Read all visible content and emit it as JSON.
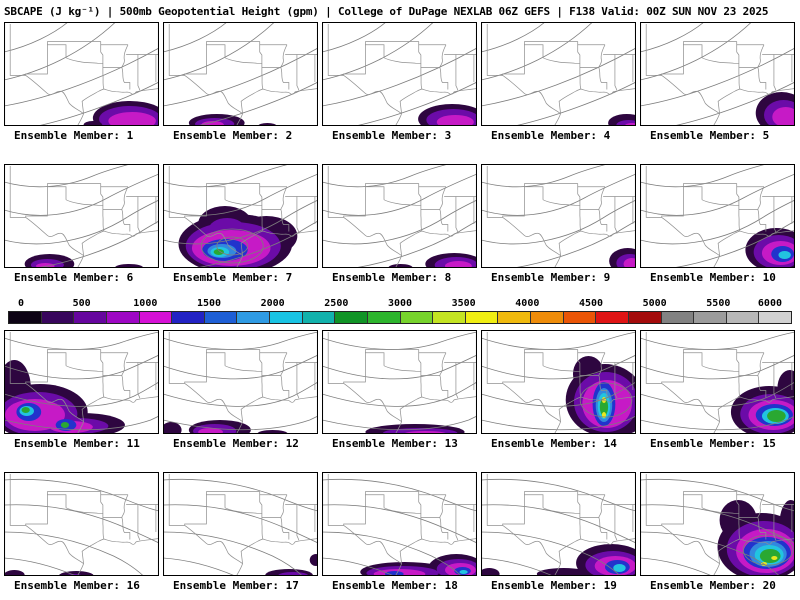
{
  "title": "SBCAPE (J kg⁻¹) | 500mb Geopotential Height (gpm) | College of DuPage NEXLAB 06Z GEFS | F138 Valid: 00Z SUN NOV 23 2025",
  "product": {
    "parameter": "SBCAPE (J kg⁻¹)",
    "overlay": "500mb Geopotential Height (gpm)",
    "source": "College of DuPage NEXLAB 06Z GEFS",
    "forecast_hour": "F138",
    "valid_time": "00Z SUN NOV 23 2025"
  },
  "colorbar": {
    "units": "J kg⁻¹",
    "ticks": [
      "0",
      "500",
      "1000",
      "1500",
      "2000",
      "2500",
      "3000",
      "3500",
      "4000",
      "4500",
      "5000",
      "5500",
      "6000"
    ],
    "segments": [
      "#0d0314",
      "#38065c",
      "#66069e",
      "#9e07c4",
      "#d611d6",
      "#2222c4",
      "#1e5fd6",
      "#2f9be4",
      "#19c4e4",
      "#12b2ac",
      "#119426",
      "#2db52d",
      "#77d32c",
      "#c4e422",
      "#f0ee12",
      "#f0ba0e",
      "#ee8c0a",
      "#ea5506",
      "#df1414",
      "#a40b0b",
      "#828282",
      "#9c9c9c",
      "#b8b8b8",
      "#d2d2d2"
    ],
    "arrow_left_color": "#0d0314",
    "arrow_right_color": "#e2e2e2"
  },
  "map": {
    "colors": {
      "contour": "#7d7d7d",
      "border_gray": "#909090",
      "frame": "#000000"
    },
    "geo_paths": [
      "M6,2 L6,53.4 L21,53.4",
      "M42,19.5 L42,52 L21,52 L21,53.4",
      "M42,19.5 L93.6,19.5",
      "M42,22.75 L60,22.75 L60,35.75",
      "M60,35.75 C65,38.5 70,39 75,40 C80,41 86,40.5 91,41.3 L95.7,41.3 L95.7,52 C96.3,57 95.2,62 96.6,67",
      "M93.6,19.5 L93.6,30 L95.7,33 L95.7,41.3",
      "M21,53.4 C27,57.5 35,65 42,71.5 C46.5,75.5 51,67.5 56,69.5 C59,71 60.5,76 63,81 C66,85.5 72,87.5 77,91.6 C75.5,96.5 72.5,101 70.5,105",
      "M77,91.6 C76.5,87 76,83 75.6,79.3 C80,75.5 86,72.5 91.2,69.5 C93,68.4 95,67.6 96.6,67 C100.5,68.2 104,69.6 108,69.7 C110,69.7 112.5,70 114,70.2 C116.5,70.4 119,69.8 121,70.3 C123.5,70.9 123,72.5 125.5,72.3 C127.5,72.1 126.5,70 128.5,69.6 C131.5,69 134,68.6 137,68.2 C141,67.7 146,67 150,66.5",
      "M95.7,45.5 L114,45.5 C116,50.5 113.8,56 116.5,60.5 L121.8,60.5 L121.8,67.5",
      "M120,22.75 C117.5,28 115.5,33 116.5,38 C117,41.5 114.5,43 114,45.5",
      "M93.6,22.75 L120,22.75",
      "M118.2,32.5 L150,32.5",
      "M129.6,32.5 L129.6,63.7 C130.5,65.5 131,66.8 131.5,68.2",
      "M147,32.5 L147,60"
    ],
    "contour_variants": [
      [
        "M0,30 C25,24 48,12 62,0",
        "M0,58 C35,50 75,32 108,0",
        "M0,84 C45,76 100,55 150,26",
        "M28,105 C70,96 120,76 150,60"
      ],
      [
        "M0,18 C28,26 58,24 86,12 C100,6 112,3 122,0",
        "M0,46 C32,56 68,52 100,34 C116,25 134,17 150,10",
        "M0,76 C38,86 84,76 118,54 C130,46 142,40 150,36",
        "M26,105 C58,100 98,88 132,68 C138,64 145,60 150,57"
      ],
      [
        "M0,8 C35,20 78,24 112,13 C126,8 140,4 150,2",
        "M0,36 C40,50 82,54 116,41 C130,35 142,29 150,25",
        "M0,64 C45,78 92,82 126,66 C136,61 145,55 150,52",
        "M0,90 C50,102 102,104 142,90 L150,86"
      ],
      [
        "M0,8 C40,5 80,12 114,26 C128,32 142,37 150,39",
        "M0,33 C45,31 85,41 118,56 C132,62 144,68 150,71",
        "M0,60 C40,60 76,70 106,84 C118,90 128,97 136,105",
        "M0,86 C28,88 52,96 72,105"
      ]
    ]
  },
  "panels": [
    {
      "member": 1,
      "label": "Ensemble Member: 1",
      "contour": 0,
      "blobs": [
        [
          122,
          96,
          36,
          17,
          "#2e0640"
        ],
        [
          122,
          97,
          30,
          13,
          "#6b0ba8"
        ],
        [
          124,
          99,
          23,
          9,
          "#c61ac6"
        ],
        [
          86,
          103,
          9,
          4,
          "#2e0640"
        ]
      ]
    },
    {
      "member": 2,
      "label": "Ensemble Member: 2",
      "contour": 0,
      "blobs": [
        [
          52,
          101,
          27,
          9,
          "#2e0640"
        ],
        [
          50,
          102,
          19,
          6,
          "#6b0ba8"
        ],
        [
          48,
          103,
          11,
          4,
          "#c61ac6"
        ],
        [
          101,
          104,
          9,
          3,
          "#2e0640"
        ]
      ]
    },
    {
      "member": 3,
      "label": "Ensemble Member: 3",
      "contour": 0,
      "blobs": [
        [
          126,
          97,
          33,
          15,
          "#2e0640"
        ],
        [
          127,
          98,
          26,
          11,
          "#6b0ba8"
        ],
        [
          129,
          100,
          18,
          7,
          "#c61ac6"
        ]
      ]
    },
    {
      "member": 4,
      "label": "Ensemble Member: 4",
      "contour": 0,
      "blobs": [
        [
          141,
          101,
          18,
          9,
          "#2e0640"
        ],
        [
          143,
          103,
          12,
          5,
          "#6b0ba8"
        ],
        [
          146,
          104,
          7,
          3,
          "#c61ac6"
        ]
      ]
    },
    {
      "member": 5,
      "label": "Ensemble Member: 5",
      "contour": 0,
      "blobs": [
        [
          137,
          91,
          25,
          21,
          "#2e0640"
        ],
        [
          139,
          93,
          19,
          15,
          "#6b0ba8"
        ],
        [
          141,
          95,
          13,
          10,
          "#c61ac6"
        ]
      ]
    },
    {
      "member": 6,
      "label": "Ensemble Member: 6",
      "contour": 1,
      "blobs": [
        [
          44,
          100,
          24,
          10,
          "#2e0640"
        ],
        [
          42,
          101,
          16,
          6,
          "#6b0ba8"
        ],
        [
          40,
          102,
          9,
          3,
          "#c61ac6"
        ],
        [
          121,
          104,
          14,
          4,
          "#2e0640"
        ]
      ]
    },
    {
      "member": 7,
      "label": "Ensemble Member: 7",
      "contour": 1,
      "blobs": [
        [
          70,
          80,
          55,
          30,
          "#2e0640"
        ],
        [
          60,
          60,
          26,
          18,
          "#2e0640"
        ],
        [
          100,
          72,
          30,
          20,
          "#2e0640"
        ],
        [
          68,
          82,
          46,
          24,
          "#6b0ba8"
        ],
        [
          62,
          66,
          18,
          12,
          "#6b0ba8"
        ],
        [
          66,
          84,
          38,
          18,
          "#c61ac6"
        ],
        [
          60,
          86,
          22,
          11,
          "#2233cc"
        ],
        [
          57,
          87,
          14,
          7,
          "#3388dd"
        ],
        [
          55,
          88,
          9,
          5,
          "#22c4e0"
        ],
        [
          54,
          88,
          5,
          3,
          "#2aa832"
        ]
      ],
      "extra_contours": [
        "M37,82 a30,17 0 1,0 60,0 a30,17 0 1,0 -60,0",
        "M52,82 a15,9 0 1,0 30,0 a15,9 0 1,0 -30,0"
      ]
    },
    {
      "member": 8,
      "label": "Ensemble Member: 8",
      "contour": 1,
      "blobs": [
        [
          128,
          100,
          28,
          11,
          "#2e0640"
        ],
        [
          130,
          101,
          21,
          8,
          "#6b0ba8"
        ],
        [
          132,
          102,
          13,
          5,
          "#c61ac6"
        ],
        [
          76,
          104,
          12,
          4,
          "#2e0640"
        ]
      ]
    },
    {
      "member": 9,
      "label": "Ensemble Member: 9",
      "contour": 1,
      "blobs": [
        [
          142,
          97,
          18,
          13,
          "#2e0640"
        ],
        [
          144,
          99,
          13,
          9,
          "#6b0ba8"
        ],
        [
          146,
          100,
          8,
          6,
          "#c61ac6"
        ]
      ]
    },
    {
      "member": 10,
      "label": "Ensemble Member: 10",
      "contour": 1,
      "blobs": [
        [
          132,
          86,
          30,
          22,
          "#2e0640"
        ],
        [
          134,
          88,
          24,
          17,
          "#6b0ba8"
        ],
        [
          136,
          89,
          18,
          12,
          "#c61ac6"
        ],
        [
          138,
          90,
          11,
          8,
          "#2233cc"
        ],
        [
          140,
          91,
          6,
          4,
          "#22c4e0"
        ]
      ]
    },
    {
      "member": 11,
      "label": "Ensemble Member: 11",
      "contour": 2,
      "blobs": [
        [
          35,
          82,
          46,
          28,
          "#2e0640"
        ],
        [
          10,
          58,
          16,
          28,
          "#2e0640"
        ],
        [
          75,
          95,
          42,
          12,
          "#2e0640"
        ],
        [
          33,
          84,
          38,
          22,
          "#6b0ba8"
        ],
        [
          70,
          96,
          31,
          8,
          "#6b0ba8"
        ],
        [
          30,
          85,
          29,
          16,
          "#c61ac6"
        ],
        [
          65,
          97,
          21,
          6,
          "#c61ac6"
        ],
        [
          24,
          82,
          12,
          9,
          "#2233cc"
        ],
        [
          60,
          95,
          10,
          6,
          "#2233cc"
        ],
        [
          22,
          81,
          7,
          5,
          "#22c4e0"
        ],
        [
          21,
          80,
          4,
          3,
          "#2aa832"
        ],
        [
          59,
          95,
          4,
          3,
          "#2aa832"
        ]
      ]
    },
    {
      "member": 12,
      "label": "Ensemble Member: 12",
      "contour": 2,
      "blobs": [
        [
          55,
          100,
          30,
          10,
          "#2e0640"
        ],
        [
          50,
          101,
          21,
          7,
          "#6b0ba8"
        ],
        [
          46,
          102,
          12,
          4,
          "#c61ac6"
        ],
        [
          8,
          100,
          10,
          8,
          "#2e0640"
        ],
        [
          106,
          104,
          15,
          4,
          "#2e0640"
        ]
      ]
    },
    {
      "member": 13,
      "label": "Ensemble Member: 13",
      "contour": 2,
      "blobs": [
        [
          90,
          102,
          48,
          8,
          "#2e0640"
        ],
        [
          95,
          103,
          36,
          5,
          "#6b0ba8"
        ],
        [
          100,
          104,
          21,
          3,
          "#c61ac6"
        ]
      ]
    },
    {
      "member": 14,
      "label": "Ensemble Member: 14",
      "contour": 2,
      "blobs": [
        [
          120,
          70,
          38,
          36,
          "#2e0640"
        ],
        [
          104,
          44,
          15,
          18,
          "#2e0640"
        ],
        [
          140,
          90,
          16,
          14,
          "#2e0640"
        ],
        [
          121,
          72,
          31,
          30,
          "#6b0ba8"
        ],
        [
          122,
          74,
          24,
          24,
          "#c61ac6"
        ],
        [
          119,
          74,
          11,
          22,
          "#2233cc"
        ],
        [
          119,
          75,
          8,
          17,
          "#3388dd"
        ],
        [
          119,
          76,
          6,
          13,
          "#22c4e0"
        ],
        [
          119,
          77,
          4,
          9,
          "#2aa832"
        ],
        [
          119,
          70,
          2,
          3,
          "#e8e820"
        ],
        [
          119,
          85,
          2,
          3,
          "#e8e820"
        ]
      ],
      "extra_contours": [
        "M96,70 a25,17 0 1,0 50,0 a25,17 0 1,0 -50,0"
      ]
    },
    {
      "member": 15,
      "label": "Ensemble Member: 15",
      "contour": 2,
      "blobs": [
        [
          125,
          82,
          37,
          26,
          "#2e0640"
        ],
        [
          145,
          58,
          12,
          18,
          "#2e0640"
        ],
        [
          127,
          84,
          30,
          20,
          "#6b0ba8"
        ],
        [
          129,
          85,
          24,
          15,
          "#c61ac6"
        ],
        [
          130,
          85,
          18,
          11,
          "#2233cc"
        ],
        [
          131,
          86,
          13,
          8,
          "#22c4e0"
        ],
        [
          132,
          86,
          9,
          6,
          "#2aa832"
        ]
      ]
    },
    {
      "member": 16,
      "label": "Ensemble Member: 16",
      "contour": 3,
      "blobs": [
        [
          70,
          104,
          17,
          5,
          "#2e0640"
        ],
        [
          10,
          103,
          10,
          5,
          "#2e0640"
        ],
        [
          68,
          105,
          9,
          3,
          "#6b0ba8"
        ]
      ]
    },
    {
      "member": 17,
      "label": "Ensemble Member: 17",
      "contour": 3,
      "blobs": [
        [
          122,
          103,
          23,
          6,
          "#2e0640"
        ],
        [
          126,
          104,
          15,
          4,
          "#6b0ba8"
        ],
        [
          148,
          88,
          6,
          6,
          "#2e0640"
        ]
      ]
    },
    {
      "member": 18,
      "label": "Ensemble Member: 18",
      "contour": 3,
      "blobs": [
        [
          80,
          100,
          43,
          10,
          "#2e0640"
        ],
        [
          130,
          96,
          27,
          14,
          "#2e0640"
        ],
        [
          78,
          101,
          35,
          7,
          "#6b0ba8"
        ],
        [
          132,
          97,
          21,
          10,
          "#6b0ba8"
        ],
        [
          75,
          102,
          25,
          5,
          "#c61ac6"
        ],
        [
          134,
          98,
          15,
          7,
          "#c61ac6"
        ],
        [
          70,
          102,
          9,
          3,
          "#2233cc"
        ],
        [
          136,
          99,
          8,
          4,
          "#2233cc"
        ],
        [
          137,
          100,
          4,
          2,
          "#22c4e0"
        ]
      ]
    },
    {
      "member": 19,
      "label": "Ensemble Member: 19",
      "contour": 3,
      "blobs": [
        [
          126,
          91,
          34,
          19,
          "#2e0640"
        ],
        [
          80,
          102,
          26,
          6,
          "#2e0640"
        ],
        [
          8,
          102,
          10,
          6,
          "#2e0640"
        ],
        [
          128,
          93,
          27,
          14,
          "#6b0ba8"
        ],
        [
          130,
          94,
          20,
          10,
          "#c61ac6"
        ],
        [
          132,
          95,
          12,
          7,
          "#2233cc"
        ],
        [
          134,
          96,
          6,
          4,
          "#22c4e0"
        ]
      ]
    },
    {
      "member": 20,
      "label": "Ensemble Member: 20",
      "contour": 3,
      "blobs": [
        [
          118,
          75,
          43,
          34,
          "#2e0640"
        ],
        [
          95,
          48,
          18,
          20,
          "#2e0640"
        ],
        [
          146,
          52,
          11,
          24,
          "#2e0640"
        ],
        [
          120,
          77,
          36,
          28,
          "#6b0ba8"
        ],
        [
          122,
          79,
          29,
          22,
          "#c61ac6"
        ],
        [
          123,
          81,
          23,
          16,
          "#2233cc"
        ],
        [
          124,
          82,
          18,
          13,
          "#3388dd"
        ],
        [
          125,
          83,
          14,
          10,
          "#22c4e0"
        ],
        [
          126,
          84,
          10,
          7,
          "#2aa832"
        ],
        [
          120,
          92,
          3,
          2,
          "#e8e820"
        ],
        [
          130,
          86,
          3,
          2,
          "#e8e820"
        ]
      ],
      "extra_contours": [
        "M100,78 a24,15 0 1,0 48,0 a24,15 0 1,0 -48,0"
      ]
    }
  ]
}
